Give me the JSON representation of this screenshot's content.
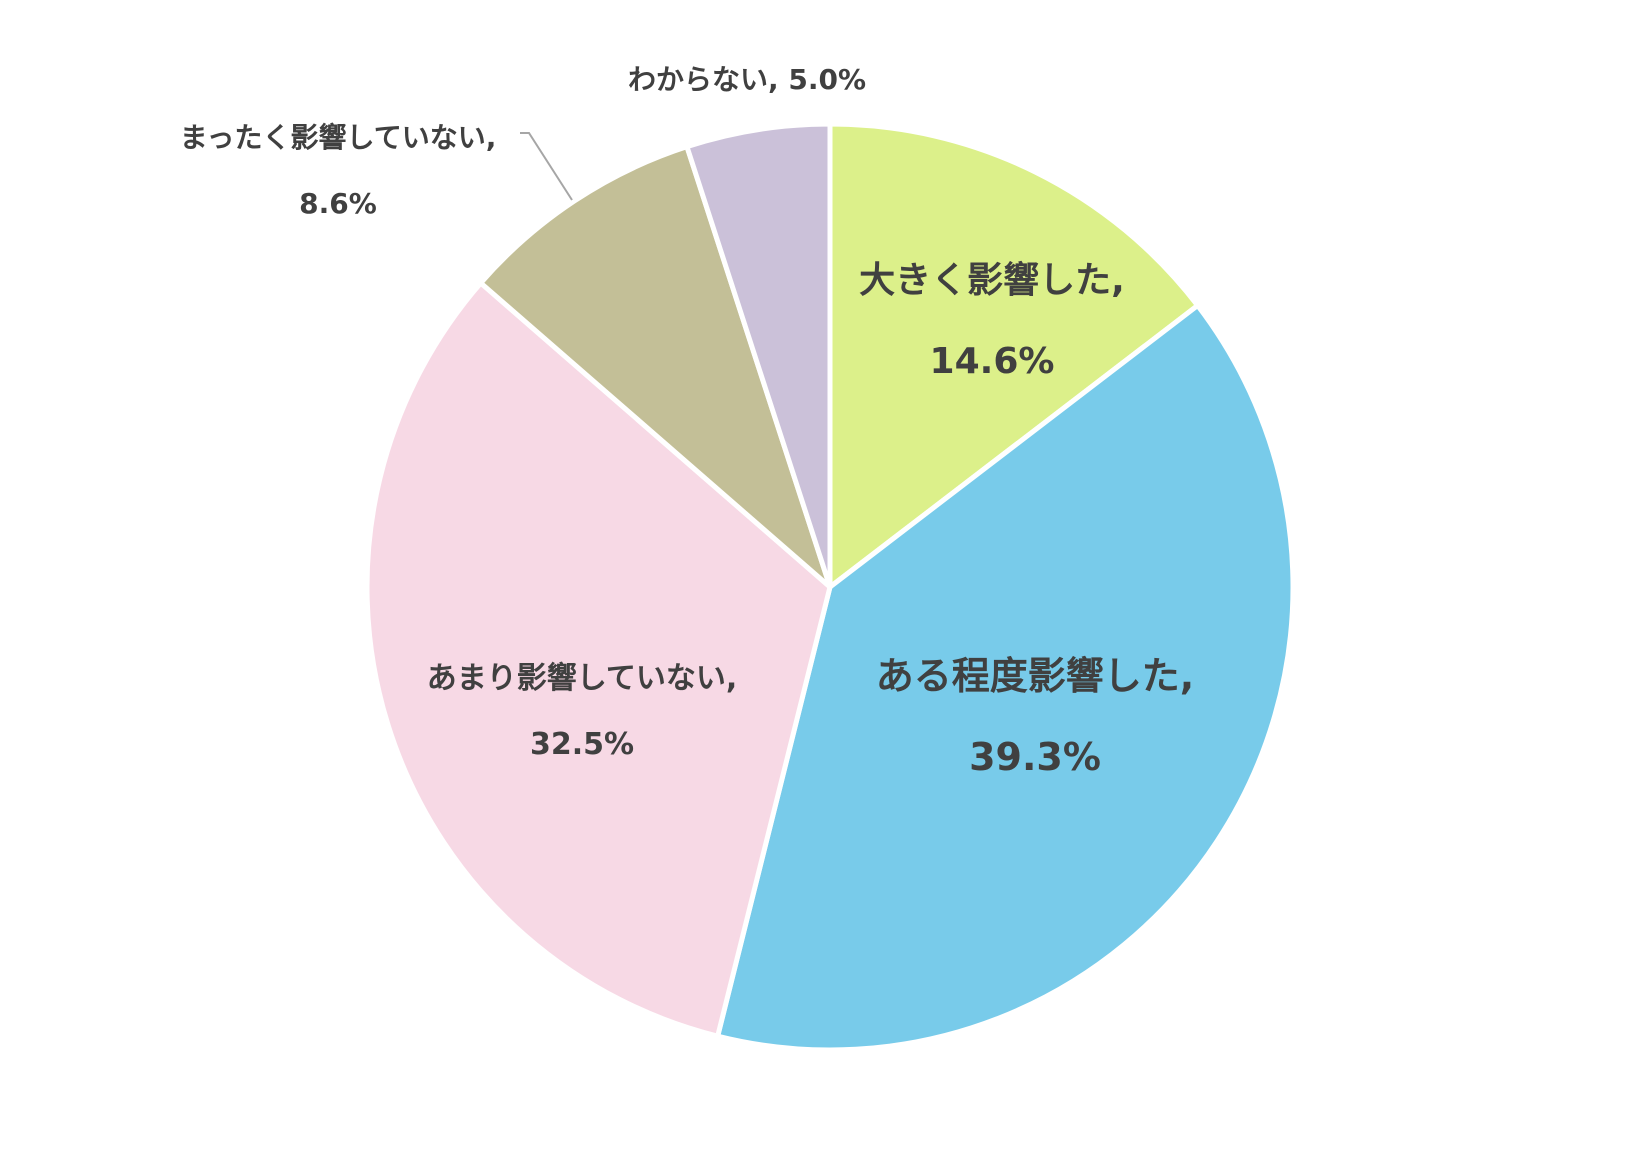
{
  "chart_data": {
    "type": "pie",
    "title": "",
    "slices": [
      {
        "name": "大きく影響した",
        "value": 14.6,
        "value_label": "14.6%",
        "color": "#DCF08A"
      },
      {
        "name": "ある程度影響した",
        "value": 39.3,
        "value_label": "39.3%",
        "color": "#78CBEA"
      },
      {
        "name": "あまり影響していない",
        "value": 32.5,
        "value_label": "32.5%",
        "color": "#F7D9E5"
      },
      {
        "name": "まったく影響していない",
        "value": 8.6,
        "value_label": "8.6%",
        "color": "#C3BF97"
      },
      {
        "name": "わからない",
        "value": 5.0,
        "value_label": "5.0%",
        "color": "#CBC1D9"
      }
    ],
    "labels": {
      "s0_name": "大きく影響した,",
      "s0_value": "14.6%",
      "s1_name": "ある程度影響した,",
      "s1_value": "39.3%",
      "s2_name": "あまり影響していない,",
      "s2_value": "32.5%",
      "s3_name": "まったく影響していない,",
      "s3_value": "8.6%",
      "s4_text": "わからない, 5.0%"
    },
    "legend": "none",
    "start_angle": "12 o'clock, clockwise"
  }
}
